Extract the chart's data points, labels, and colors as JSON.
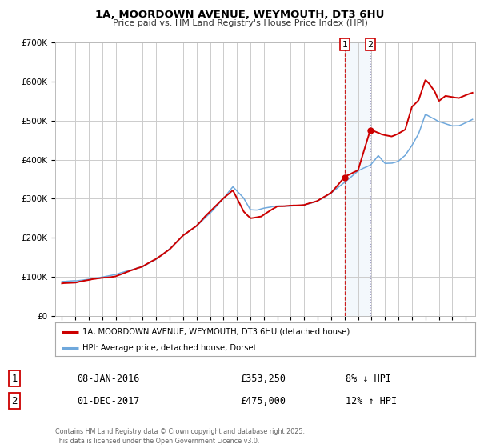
{
  "title": "1A, MOORDOWN AVENUE, WEYMOUTH, DT3 6HU",
  "subtitle": "Price paid vs. HM Land Registry's House Price Index (HPI)",
  "ylim": [
    0,
    700000
  ],
  "yticks": [
    0,
    100000,
    200000,
    300000,
    400000,
    500000,
    600000,
    700000
  ],
  "ytick_labels": [
    "£0",
    "£100K",
    "£200K",
    "£300K",
    "£400K",
    "£500K",
    "£600K",
    "£700K"
  ],
  "xlim_start": 1994.5,
  "xlim_end": 2025.7,
  "xticks": [
    1995,
    1996,
    1997,
    1998,
    1999,
    2000,
    2001,
    2002,
    2003,
    2004,
    2005,
    2006,
    2007,
    2008,
    2009,
    2010,
    2011,
    2012,
    2013,
    2014,
    2015,
    2016,
    2017,
    2018,
    2019,
    2020,
    2021,
    2022,
    2023,
    2024,
    2025
  ],
  "sale1_date": 2016.025,
  "sale1_price": 353250,
  "sale1_label": "1",
  "sale1_date_str": "08-JAN-2016",
  "sale1_price_str": "£353,250",
  "sale1_hpi_str": "8% ↓ HPI",
  "sale2_date": 2017.917,
  "sale2_price": 475000,
  "sale2_label": "2",
  "sale2_date_str": "01-DEC-2017",
  "sale2_price_str": "£475,000",
  "sale2_hpi_str": "12% ↑ HPI",
  "hpi_color": "#6fa8dc",
  "price_color": "#cc0000",
  "shade_color": "#d0e4f5",
  "background_color": "#ffffff",
  "grid_color": "#cccccc",
  "legend_label_price": "1A, MOORDOWN AVENUE, WEYMOUTH, DT3 6HU (detached house)",
  "legend_label_hpi": "HPI: Average price, detached house, Dorset",
  "footer": "Contains HM Land Registry data © Crown copyright and database right 2025.\nThis data is licensed under the Open Government Licence v3.0."
}
